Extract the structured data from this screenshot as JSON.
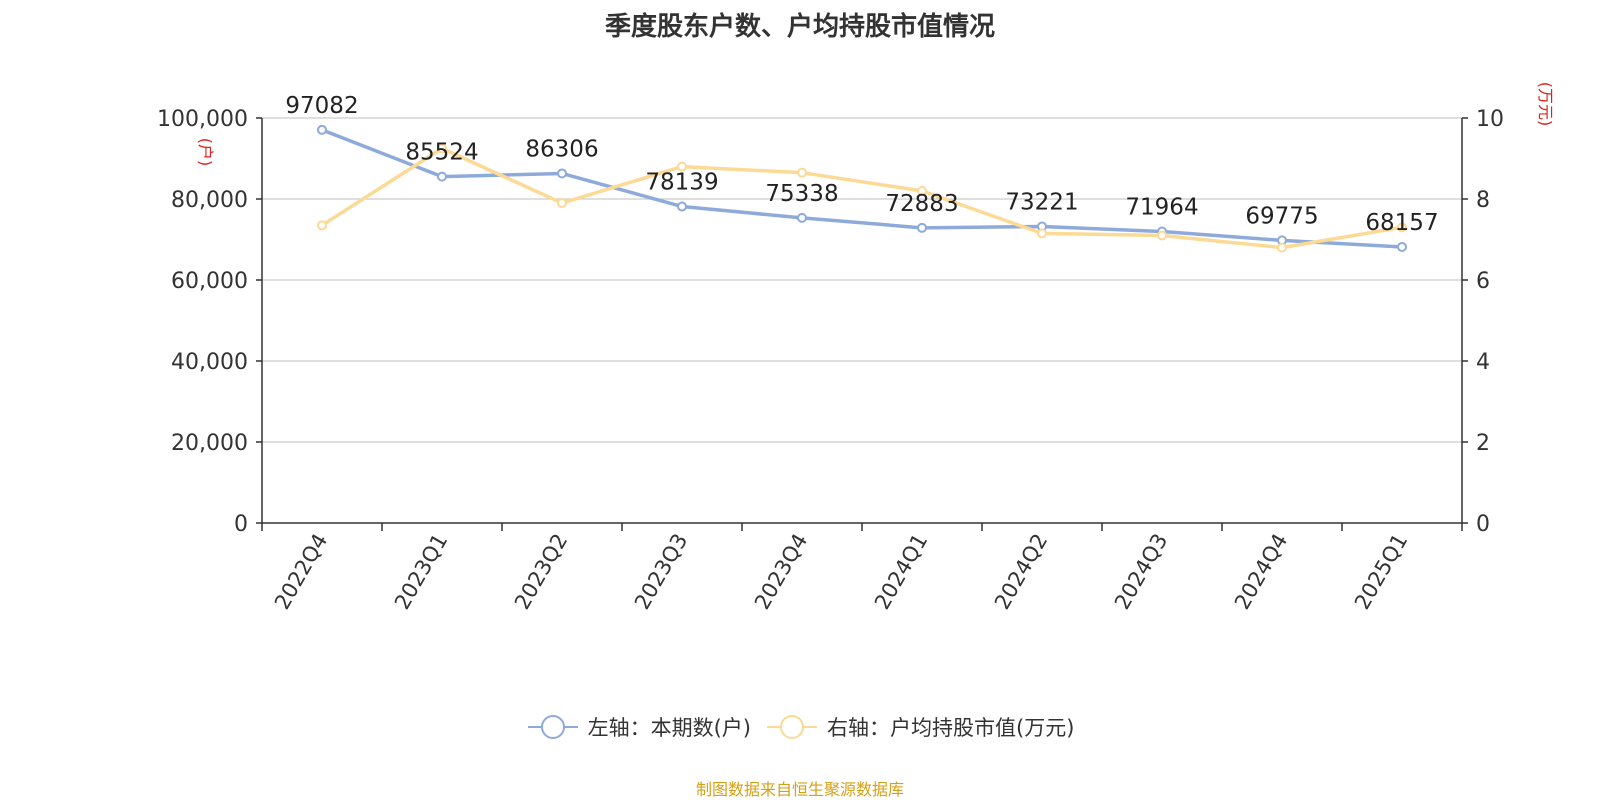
{
  "chart_data": {
    "type": "line",
    "title": "季度股东户数、户均持股市值情况",
    "categories": [
      "2022Q4",
      "2023Q1",
      "2023Q2",
      "2023Q3",
      "2023Q4",
      "2024Q1",
      "2024Q2",
      "2024Q3",
      "2024Q4",
      "2025Q1"
    ],
    "y_left": {
      "label": "(户)",
      "ticks": [
        "0",
        "20,000",
        "40,000",
        "60,000",
        "80,000",
        "100,000"
      ],
      "ylim": [
        0,
        100000
      ]
    },
    "y_right": {
      "label": "(万元)",
      "ticks": [
        "0",
        "2",
        "4",
        "6",
        "8",
        "10"
      ],
      "ylim": [
        0,
        10
      ]
    },
    "series": [
      {
        "name": "左轴：本期数(户)",
        "axis": "left",
        "color": "#8eaadb",
        "values": [
          97082,
          85524,
          86306,
          78139,
          75338,
          72883,
          73221,
          71964,
          69775,
          68157
        ],
        "labels": [
          "97082",
          "85524",
          "86306",
          "78139",
          "75338",
          "72883",
          "73221",
          "71964",
          "69775",
          "68157"
        ]
      },
      {
        "name": "右轴：户均持股市值(万元)",
        "axis": "right",
        "color": "#fcd995",
        "values": [
          7.35,
          9.25,
          7.9,
          8.8,
          8.65,
          8.2,
          7.15,
          7.1,
          6.8,
          7.3
        ]
      }
    ],
    "grid": true,
    "legend_position": "bottom"
  },
  "colors": {
    "axis_label_red": "#e0201b",
    "source_text": "#d4a017",
    "grid": "#cccccc",
    "text": "#333333"
  },
  "source": "制图数据来自恒生聚源数据库"
}
